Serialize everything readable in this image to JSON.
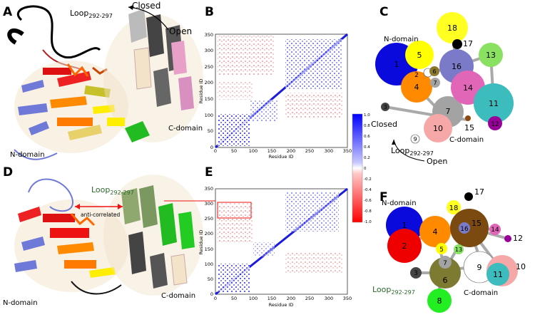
{
  "panels": {
    "A": "A",
    "B": "B",
    "C": "C",
    "D": "D",
    "E": "E",
    "F": "F"
  },
  "panelA": {
    "loop_main": "Loop",
    "loop_sub": "292-297",
    "closed": "Closed",
    "open": "Open",
    "n_domain": "N-domain",
    "c_domain": "C-domain"
  },
  "panelD": {
    "loop_main": "Loop",
    "loop_sub": "292-297",
    "anti": "anti-correlated",
    "n_domain": "N-domain",
    "c_domain": "C-domain"
  },
  "panelC": {
    "n_domain": "N-domain",
    "c_domain": "C-domain",
    "closed": "Closed",
    "open": "Open",
    "loop_main": "Loop",
    "loop_sub": "292-297"
  },
  "panelF": {
    "n_domain": "N-domain",
    "c_domain": "C-domain",
    "loop_main": "Loop",
    "loop_sub": "292-297"
  },
  "heatmap": {
    "x_label": "Residue ID",
    "y_label": "Residue ID",
    "ticks": [
      "0",
      "50",
      "100",
      "150",
      "200",
      "250",
      "300",
      "350"
    ]
  },
  "colorbar": {
    "ticks": [
      "1.0",
      "0.8",
      "0.6",
      "0.4",
      "0.2",
      "0",
      "-0.2",
      "-0.4",
      "-0.6",
      "-0.8",
      "-1.0"
    ]
  },
  "nodesC": [
    {
      "id": "1",
      "color": "#0a0adc"
    },
    {
      "id": "2",
      "color": "#ffffff"
    },
    {
      "id": "3",
      "color": "#444444"
    },
    {
      "id": "4",
      "color": "#ff8a00"
    },
    {
      "id": "5",
      "color": "#ffff00"
    },
    {
      "id": "6",
      "color": "#8a7a2e"
    },
    {
      "id": "7",
      "color": "#a3a3a3"
    },
    {
      "id": "8",
      "color": "#22dd22"
    },
    {
      "id": "9",
      "color": "#ffffff"
    },
    {
      "id": "10",
      "color": "#f6a7a7"
    },
    {
      "id": "11",
      "color": "#3cbcbc"
    },
    {
      "id": "12",
      "color": "#990099"
    },
    {
      "id": "13",
      "color": "#8ae060"
    },
    {
      "id": "14",
      "color": "#e266b8"
    },
    {
      "id": "15",
      "color": "#8a4a10"
    },
    {
      "id": "16",
      "color": "#7a7ac8"
    },
    {
      "id": "17",
      "color": "#000000"
    },
    {
      "id": "18",
      "color": "#ffff22"
    }
  ],
  "nodesF": [
    {
      "id": "1",
      "color": "#0a0adc"
    },
    {
      "id": "2",
      "color": "#ee0000"
    },
    {
      "id": "3",
      "color": "#444444"
    },
    {
      "id": "4",
      "color": "#ff8a00"
    },
    {
      "id": "5",
      "color": "#ffff00"
    },
    {
      "id": "6",
      "color": "#7d7a32"
    },
    {
      "id": "7",
      "color": "#a3a3a3"
    },
    {
      "id": "8",
      "color": "#22ee22"
    },
    {
      "id": "9",
      "color": "#ffffff"
    },
    {
      "id": "10",
      "color": "#f6a7a7"
    },
    {
      "id": "11",
      "color": "#3cbcbc"
    },
    {
      "id": "12",
      "color": "#990099"
    },
    {
      "id": "13",
      "color": "#8ae060"
    },
    {
      "id": "14",
      "color": "#e266b8"
    },
    {
      "id": "15",
      "color": "#7a4a10"
    },
    {
      "id": "16",
      "color": "#7a7ac8"
    },
    {
      "id": "17",
      "color": "#000000"
    },
    {
      "id": "18",
      "color": "#ffff22"
    }
  ]
}
